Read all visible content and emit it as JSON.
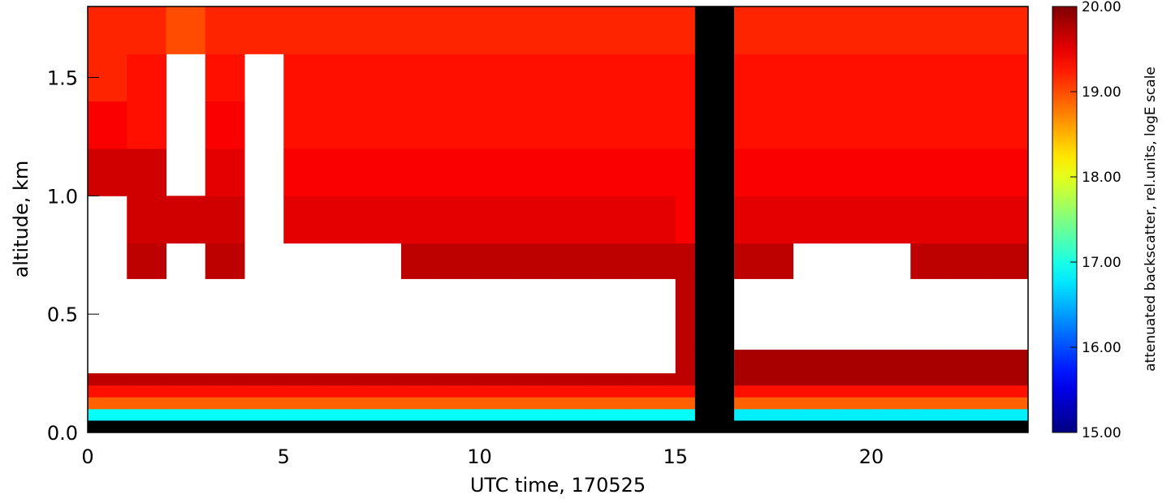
{
  "chart_data": {
    "type": "heatmap",
    "x_label": "UTC time, 170525",
    "y_label": "altitude, km",
    "colorbar_label": "attenuated backscatter, rel.units, logE scale",
    "xlim": [
      0,
      24
    ],
    "xticks": [
      0,
      5,
      10,
      15,
      20
    ],
    "ylim": [
      0,
      1.8
    ],
    "yticks": [
      {
        "value": 0,
        "label": "0.0"
      },
      0.5,
      {
        "value": 1,
        "label": "1.0"
      },
      1.5
    ],
    "clim": [
      15,
      20
    ],
    "cticks": [
      {
        "value": 15,
        "label": "15.00"
      },
      {
        "value": 16,
        "label": "16.00"
      },
      {
        "value": 17,
        "label": "17.00"
      },
      {
        "value": 18,
        "label": "18.00"
      },
      {
        "value": 19,
        "label": "19.00"
      },
      {
        "value": 20,
        "label": "20.00"
      }
    ],
    "colormap": "rainbow",
    "no_data_color": "#000000",
    "no_data_regions": [
      {
        "x": [
          0,
          24
        ],
        "y": [
          0,
          0.05
        ]
      },
      {
        "x": [
          15.5,
          16.5
        ],
        "y": [
          0,
          1.8
        ]
      }
    ],
    "x_edges": [
      0,
      1,
      2,
      3,
      4,
      5,
      6,
      7,
      8,
      9,
      10,
      11,
      12,
      13,
      14,
      15,
      15.5,
      16.5,
      17,
      18,
      19,
      20,
      21,
      22,
      23,
      24
    ],
    "y_edges": [
      0,
      0.05,
      0.1,
      0.15,
      0.2,
      0.25,
      0.35,
      0.5,
      0.65,
      0.8,
      1.0,
      1.2,
      1.4,
      1.6,
      1.8
    ],
    "values": [
      [
        null,
        null,
        null,
        null,
        null,
        null,
        null,
        null,
        null,
        null,
        null,
        null,
        null,
        null,
        null,
        null,
        null,
        null,
        null,
        null,
        null,
        null,
        null,
        null,
        null
      ],
      [
        16.9,
        16.9,
        16.9,
        16.9,
        16.9,
        16.9,
        16.9,
        16.9,
        16.9,
        16.9,
        16.9,
        16.9,
        16.9,
        16.9,
        16.9,
        16.9,
        null,
        16.8,
        16.8,
        16.8,
        16.8,
        16.8,
        16.8,
        16.8,
        16.8
      ],
      [
        18.9,
        18.9,
        18.9,
        18.9,
        18.9,
        18.9,
        18.9,
        18.9,
        18.9,
        18.9,
        18.9,
        18.9,
        18.9,
        18.9,
        18.9,
        18.9,
        null,
        18.9,
        18.9,
        18.9,
        18.9,
        18.9,
        18.9,
        18.9,
        18.9
      ],
      [
        19.3,
        19.3,
        19.3,
        19.3,
        19.3,
        19.3,
        19.3,
        19.3,
        19.3,
        19.3,
        19.3,
        19.3,
        19.3,
        19.3,
        19.3,
        19.3,
        null,
        19.3,
        19.3,
        19.3,
        19.3,
        19.3,
        19.3,
        19.3,
        19.3
      ],
      [
        19.7,
        19.7,
        19.7,
        19.7,
        19.7,
        19.7,
        19.7,
        19.7,
        19.7,
        19.7,
        19.7,
        19.7,
        19.7,
        19.7,
        19.7,
        19.7,
        null,
        19.8,
        19.8,
        19.8,
        19.8,
        19.8,
        19.8,
        19.8,
        19.8
      ],
      [
        null,
        null,
        null,
        null,
        null,
        null,
        null,
        null,
        null,
        null,
        null,
        null,
        null,
        null,
        null,
        19.7,
        null,
        19.8,
        19.8,
        19.8,
        19.8,
        19.8,
        19.8,
        19.8,
        19.8
      ],
      [
        null,
        null,
        null,
        null,
        null,
        null,
        null,
        null,
        null,
        null,
        null,
        null,
        null,
        null,
        null,
        19.7,
        null,
        null,
        null,
        null,
        null,
        null,
        null,
        null,
        null
      ],
      [
        null,
        null,
        null,
        null,
        null,
        null,
        null,
        null,
        null,
        null,
        null,
        null,
        null,
        null,
        null,
        19.7,
        null,
        null,
        null,
        null,
        null,
        null,
        null,
        null,
        null
      ],
      [
        null,
        19.7,
        null,
        19.7,
        null,
        null,
        null,
        null,
        19.7,
        19.7,
        19.7,
        19.7,
        19.7,
        19.7,
        19.7,
        19.7,
        null,
        19.7,
        19.7,
        null,
        null,
        null,
        19.7,
        19.7,
        19.7
      ],
      [
        null,
        19.6,
        19.6,
        19.6,
        null,
        19.5,
        19.5,
        19.5,
        19.5,
        19.5,
        19.5,
        19.5,
        19.5,
        19.5,
        19.5,
        19.4,
        null,
        19.5,
        19.5,
        19.5,
        19.5,
        19.5,
        19.5,
        19.5,
        19.5
      ],
      [
        19.6,
        19.6,
        null,
        19.5,
        null,
        19.4,
        19.4,
        19.4,
        19.4,
        19.4,
        19.4,
        19.4,
        19.4,
        19.4,
        19.4,
        19.4,
        null,
        19.4,
        19.4,
        19.4,
        19.4,
        19.4,
        19.4,
        19.4,
        19.4
      ],
      [
        19.4,
        19.3,
        null,
        19.4,
        null,
        19.3,
        19.3,
        19.3,
        19.3,
        19.3,
        19.3,
        19.3,
        19.3,
        19.3,
        19.3,
        19.3,
        null,
        19.3,
        19.3,
        19.3,
        19.3,
        19.3,
        19.3,
        19.3,
        19.3
      ],
      [
        19.2,
        19.3,
        null,
        19.3,
        null,
        19.3,
        19.3,
        19.3,
        19.3,
        19.3,
        19.3,
        19.3,
        19.3,
        19.3,
        19.3,
        19.3,
        null,
        19.3,
        19.3,
        19.3,
        19.3,
        19.3,
        19.3,
        19.3,
        19.3
      ],
      [
        19.2,
        19.2,
        19.0,
        19.2,
        19.2,
        19.2,
        19.2,
        19.2,
        19.2,
        19.2,
        19.2,
        19.2,
        19.2,
        19.2,
        19.2,
        19.2,
        null,
        19.2,
        19.2,
        19.2,
        19.2,
        19.2,
        19.2,
        19.2,
        19.2
      ]
    ]
  }
}
